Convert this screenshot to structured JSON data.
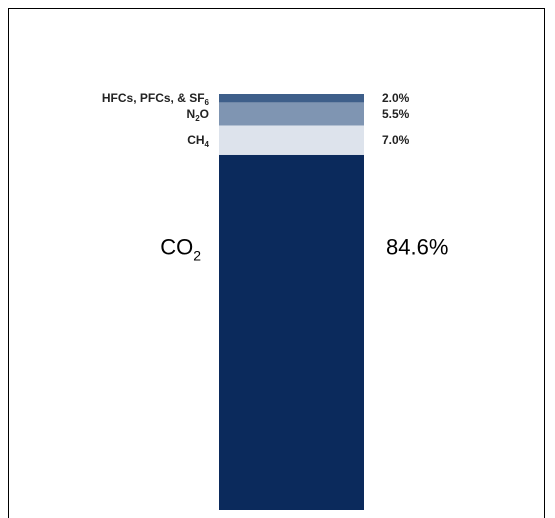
{
  "chart_data": {
    "type": "bar",
    "stacked": true,
    "unit": "%",
    "series": [
      {
        "name": "CO",
        "sub": "2",
        "label_size": "large",
        "value": 84.6,
        "value_label": "84.6%",
        "color": "#0b2a5c"
      },
      {
        "name": "CH",
        "sub": "4",
        "label_size": "small",
        "value": 7.0,
        "value_label": "7.0%",
        "color": "#dde3ec"
      },
      {
        "name": "N",
        "sub": "2",
        "suffix": "O",
        "label_size": "small",
        "value": 5.5,
        "value_label": "5.5%",
        "color": "#7f95b2"
      },
      {
        "name": "HFCs, PFCs, & SF",
        "sub": "6",
        "label_size": "small",
        "value": 2.0,
        "value_label": "2.0%",
        "color": "#3e5f8a"
      }
    ]
  }
}
